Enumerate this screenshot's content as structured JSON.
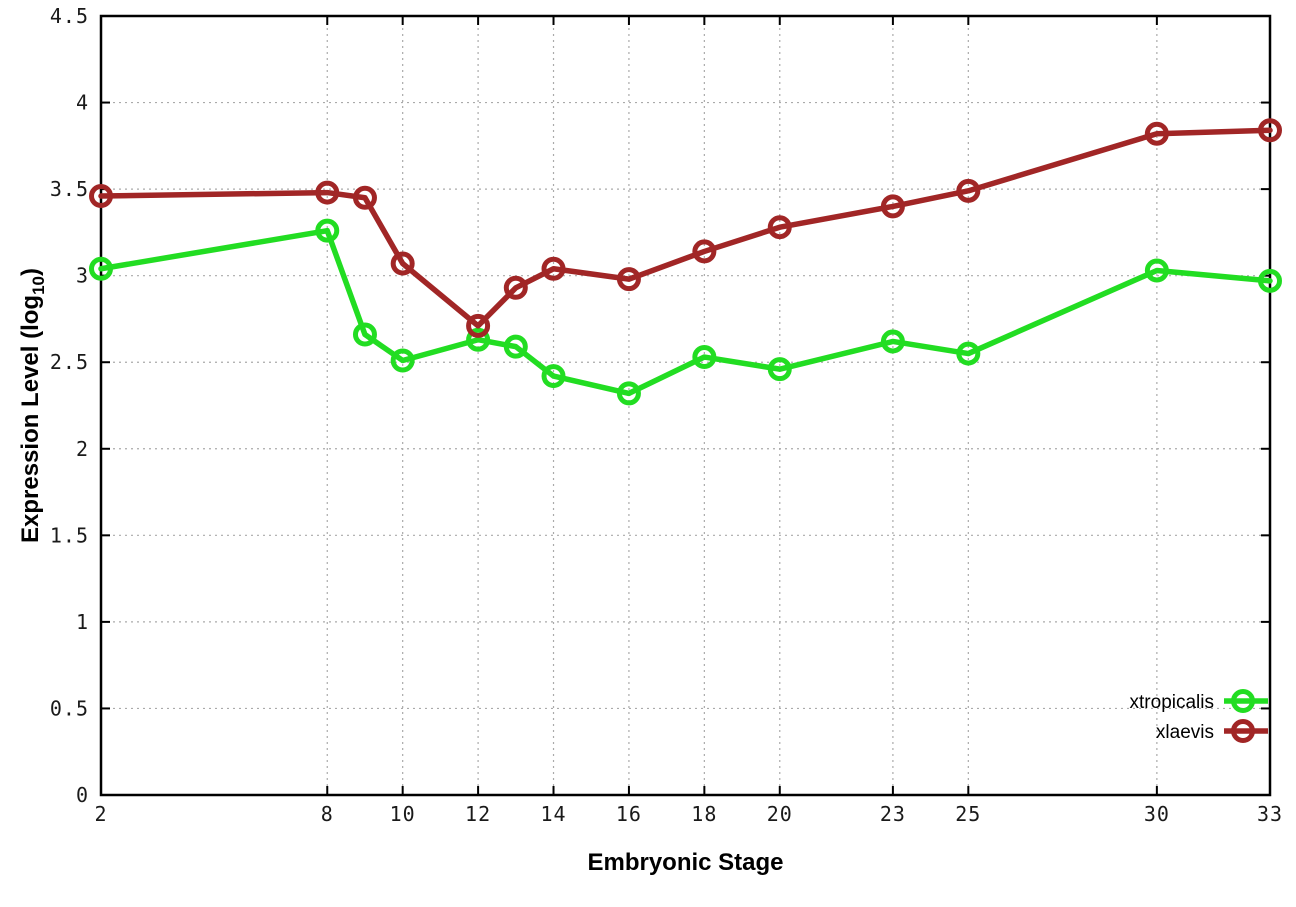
{
  "chart_data": {
    "type": "line",
    "title": "",
    "xlabel": "Embryonic Stage",
    "ylabel": {
      "prefix": "Expression Level (log",
      "subscript": "10",
      "suffix": ")"
    },
    "x": [
      2,
      8,
      9,
      10,
      12,
      13,
      14,
      16,
      18,
      20,
      23,
      25,
      30,
      33
    ],
    "series": [
      {
        "name": "xtropicalis",
        "color": "#22dd22",
        "values": [
          3.04,
          3.26,
          2.66,
          2.51,
          2.63,
          2.59,
          2.42,
          2.32,
          2.53,
          2.46,
          2.62,
          2.55,
          3.03,
          2.97
        ]
      },
      {
        "name": "xlaevis",
        "color": "#a12626",
        "values": [
          3.46,
          3.48,
          3.45,
          3.07,
          2.71,
          2.93,
          3.04,
          2.98,
          3.14,
          3.28,
          3.4,
          3.49,
          3.82,
          3.84
        ]
      }
    ],
    "xlim": [
      2,
      33
    ],
    "ylim": [
      0,
      4.5
    ],
    "x_ticks": {
      "values": [
        2,
        8,
        10,
        12,
        14,
        16,
        18,
        20,
        23,
        25,
        30,
        33
      ],
      "labels": [
        "2",
        "8",
        "10",
        "12",
        "14",
        "16",
        "18",
        "20",
        "23",
        "25",
        "30",
        "33"
      ]
    },
    "y_ticks": {
      "values": [
        0,
        0.5,
        1,
        1.5,
        2,
        2.5,
        3,
        3.5,
        4,
        4.5
      ],
      "labels": [
        "0",
        "0.5",
        "1",
        "1.5",
        "2",
        "2.5",
        "3",
        "3.5",
        "4",
        "4.5"
      ]
    },
    "grid": true,
    "legend_position": "bottom-right",
    "marker": "open-circle"
  },
  "colors": {
    "background": "#ffffff",
    "border": "#000000",
    "grid": "#aaaaaa",
    "text": "#1a1a1a"
  }
}
